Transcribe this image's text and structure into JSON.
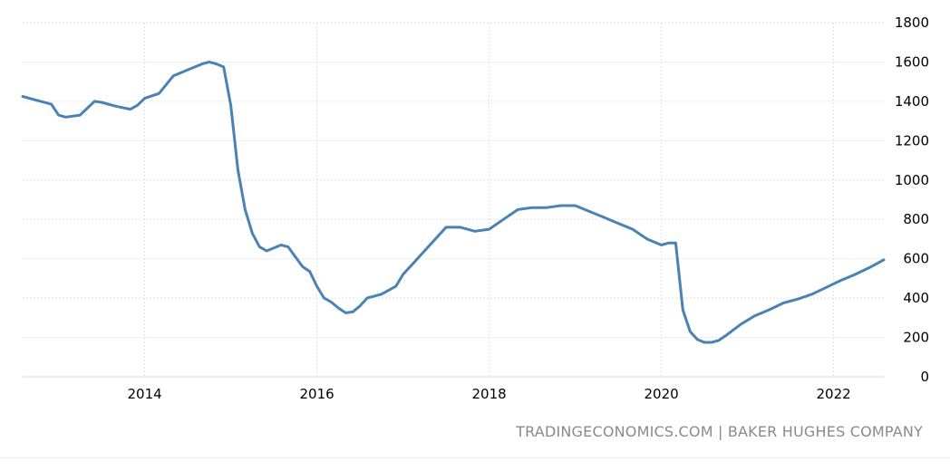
{
  "source_text": "TRADINGECONOMICS.COM | BAKER HUGHES COMPANY",
  "chart_data": {
    "type": "line",
    "title": "",
    "xlabel": "",
    "ylabel": "",
    "ylim": [
      0,
      1800
    ],
    "xlim": [
      "2012-08",
      "2022-08"
    ],
    "yticks": [
      0,
      200,
      400,
      600,
      800,
      1000,
      1200,
      1400,
      1600,
      1800
    ],
    "xticks": [
      "2014",
      "2016",
      "2018",
      "2020",
      "2022"
    ],
    "grid": true,
    "line_color": "#4a82b4",
    "x": [
      "2012-08",
      "2012-10",
      "2012-12",
      "2013-01",
      "2013-02",
      "2013-04",
      "2013-06",
      "2013-07",
      "2013-09",
      "2013-11",
      "2013-12",
      "2014-01",
      "2014-03",
      "2014-05",
      "2014-07",
      "2014-09",
      "2014-10",
      "2014-11",
      "2014-12",
      "2015-01",
      "2015-02",
      "2015-03",
      "2015-04",
      "2015-05",
      "2015-06",
      "2015-07",
      "2015-08",
      "2015-09",
      "2015-10",
      "2015-11",
      "2015-12",
      "2016-01",
      "2016-02",
      "2016-03",
      "2016-04",
      "2016-05",
      "2016-06",
      "2016-07",
      "2016-08",
      "2016-10",
      "2016-12",
      "2017-01",
      "2017-03",
      "2017-05",
      "2017-07",
      "2017-09",
      "2017-11",
      "2018-01",
      "2018-03",
      "2018-05",
      "2018-07",
      "2018-09",
      "2018-11",
      "2019-01",
      "2019-03",
      "2019-05",
      "2019-07",
      "2019-09",
      "2019-11",
      "2020-01",
      "2020-02",
      "2020-03",
      "2020-04",
      "2020-05",
      "2020-06",
      "2020-07",
      "2020-08",
      "2020-09",
      "2020-10",
      "2020-12",
      "2021-02",
      "2021-04",
      "2021-06",
      "2021-08",
      "2021-10",
      "2021-12",
      "2022-02",
      "2022-04",
      "2022-06",
      "2022-08"
    ],
    "series": [
      {
        "values": [
          1425,
          1405,
          1385,
          1330,
          1320,
          1330,
          1400,
          1395,
          1375,
          1360,
          1380,
          1415,
          1440,
          1530,
          1560,
          1590,
          1600,
          1590,
          1575,
          1380,
          1050,
          850,
          730,
          660,
          640,
          655,
          670,
          660,
          610,
          560,
          535,
          460,
          400,
          380,
          350,
          325,
          330,
          360,
          400,
          420,
          460,
          520,
          600,
          680,
          760,
          760,
          740,
          750,
          800,
          850,
          860,
          860,
          870,
          870,
          840,
          810,
          780,
          750,
          700,
          670,
          680,
          680,
          340,
          230,
          190,
          175,
          175,
          185,
          210,
          265,
          310,
          340,
          375,
          395,
          420,
          455,
          490,
          520,
          555,
          595
        ]
      }
    ]
  }
}
